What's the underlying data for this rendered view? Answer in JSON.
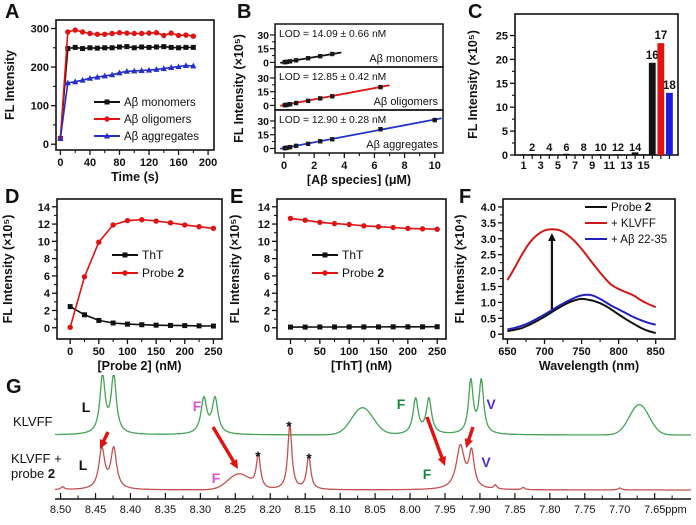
{
  "panel_letters": {
    "A": "A",
    "B": "B",
    "C": "C",
    "D": "D",
    "E": "E",
    "F": "F",
    "G": "G"
  },
  "g_labels": {
    "row1": "KLVFF",
    "row2a": "KLVFF +",
    "row2b": "probe ",
    "row2c": "2"
  },
  "colors": {
    "black": "#111111",
    "red": "#e01212",
    "blue": "#2630c8",
    "bar_blue": "#1a1ae0",
    "nmr_green": "#46a254",
    "nmr_red": "#c25050",
    "arrow_red": "#e01212",
    "magenta": "#e050dd",
    "violet": "#4d2fc8",
    "green_letter": "#158a3c"
  },
  "chart_data": [
    {
      "id": "A",
      "type": "line",
      "xlabel": "Time (s)",
      "ylabel": "FL Intensity",
      "xlim": [
        -6,
        208
      ],
      "ylim": [
        -15,
        322
      ],
      "xticks": [
        0,
        40,
        80,
        120,
        160,
        200
      ],
      "xtick_labels": [
        "0",
        "40",
        "80",
        "120",
        "160",
        "200"
      ],
      "yticks": [
        0,
        100,
        200,
        300
      ],
      "ytick_labels": [
        "0",
        "100",
        "200",
        "300"
      ],
      "series": [
        {
          "name": "Aβ monomers",
          "color": "#111111",
          "marker": "square",
          "x": [
            0,
            10,
            20,
            30,
            40,
            50,
            60,
            70,
            80,
            90,
            100,
            110,
            120,
            130,
            140,
            150,
            160,
            170,
            180
          ],
          "y": [
            15,
            248,
            251,
            248,
            250,
            249,
            250,
            250,
            252,
            253,
            250,
            252,
            251,
            252,
            253,
            251,
            250,
            251,
            251
          ]
        },
        {
          "name": "Aβ oligomers",
          "color": "#e01212",
          "marker": "circle",
          "y": [
            15,
            291,
            296,
            291,
            287,
            285,
            285,
            287,
            289,
            288,
            287,
            287,
            288,
            289,
            282,
            288,
            282,
            283,
            280
          ]
        },
        {
          "name": "Aβ aggregates",
          "color": "#2630c8",
          "marker": "triangle",
          "y": [
            15,
            159,
            162,
            166,
            171,
            174,
            177,
            180,
            185,
            189,
            190,
            191,
            192,
            194,
            196,
            199,
            201,
            204,
            203
          ]
        }
      ],
      "legend": true
    },
    {
      "id": "B",
      "type": "stacked-scatter",
      "xlabel": "[Aβ species] (μM)",
      "ylabel": "FL Intensity (×10⁵)",
      "xlim": [
        -0.6,
        10.55
      ],
      "xticks": [
        0,
        2,
        4,
        6,
        8,
        10
      ],
      "xtick_labels": [
        "0",
        "2",
        "4",
        "6",
        "8",
        "10"
      ],
      "ylim": [
        -5,
        42
      ],
      "yticks": [
        0,
        15,
        30
      ],
      "ytick_labels": [
        "0",
        "15",
        "30"
      ],
      "subplots": [
        {
          "lod": "LOD = 14.09 ± 0.66 nM",
          "label": "Aβ monomers",
          "color": "#111111",
          "points": [
            [
              0.05,
              0.3
            ],
            [
              0.1,
              0.45
            ],
            [
              0.2,
              0.6
            ],
            [
              0.4,
              1.2
            ],
            [
              0.8,
              2.3
            ],
            [
              1.6,
              4.6
            ],
            [
              2.4,
              6.8
            ],
            [
              3.2,
              9.2
            ]
          ],
          "fit": [
            [
              -0.25,
              -0.5
            ],
            [
              3.8,
              10.9
            ]
          ]
        },
        {
          "lod": "LOD = 12.85 ± 0.42 nM",
          "label": "Aβ oligomers",
          "color": "#e01212",
          "points": [
            [
              0.05,
              0.3
            ],
            [
              0.1,
              0.5
            ],
            [
              0.2,
              0.7
            ],
            [
              0.4,
              1.3
            ],
            [
              0.8,
              2.6
            ],
            [
              1.6,
              5.0
            ],
            [
              2.4,
              7.7
            ],
            [
              3.2,
              10.0
            ],
            [
              6.4,
              20.0
            ]
          ],
          "fit": [
            [
              -0.25,
              -0.4
            ],
            [
              7.0,
              22.0
            ]
          ]
        },
        {
          "lod": "LOD = 12.90 ± 0.28 nM",
          "label": "Aβ aggregates",
          "color": "#2233cc",
          "points": [
            [
              0.05,
              0.3
            ],
            [
              0.1,
              0.5
            ],
            [
              0.2,
              0.8
            ],
            [
              0.4,
              1.4
            ],
            [
              0.8,
              2.8
            ],
            [
              1.6,
              5.0
            ],
            [
              2.4,
              7.8
            ],
            [
              3.2,
              10.0
            ],
            [
              6.4,
              21.0
            ],
            [
              10,
              31.0
            ]
          ],
          "fit": [
            [
              -0.25,
              -0.4
            ],
            [
              10.45,
              33.0
            ]
          ]
        }
      ]
    },
    {
      "id": "C",
      "type": "bar",
      "ylabel": "FL Intensity (×10⁵)",
      "ylim": [
        0,
        29.5
      ],
      "yticks": [
        0,
        5,
        10,
        15,
        20,
        25
      ],
      "ytick_labels": [
        "0",
        "5",
        "10",
        "15",
        "20",
        "25"
      ],
      "categories": [
        "1",
        "2",
        "3",
        "4",
        "5",
        "6",
        "7",
        "8",
        "9",
        "10",
        "11",
        "12",
        "13",
        "14",
        "15",
        "16",
        "17",
        "18"
      ],
      "values": [
        0.15,
        0.18,
        0.12,
        0.15,
        0.12,
        0.25,
        0.12,
        0.15,
        0.12,
        0.15,
        0.12,
        0.15,
        0.12,
        0.55,
        0.15,
        19.3,
        23.4,
        13.0
      ],
      "bar_colors": [
        "#111111",
        "#111111",
        "#111111",
        "#111111",
        "#111111",
        "#111111",
        "#111111",
        "#111111",
        "#111111",
        "#111111",
        "#111111",
        "#111111",
        "#111111",
        "#111111",
        "#111111",
        "#111111",
        "#e01212",
        "#1a1ae0"
      ],
      "below_labels": [
        "1",
        "",
        "3",
        "",
        "5",
        "",
        "7",
        "",
        "9",
        "",
        "11",
        "",
        "13",
        "",
        "15",
        "",
        "",
        ""
      ],
      "above_labels": [
        "",
        "2",
        "",
        "4",
        "",
        "6",
        "",
        "8",
        "",
        "10",
        "",
        "12",
        "",
        "14",
        "",
        "",
        "",
        ""
      ],
      "top_labels": [
        "",
        "",
        "",
        "",
        "",
        "",
        "",
        "",
        "",
        "",
        "",
        "",
        "",
        "",
        "",
        "16",
        "17",
        "18"
      ]
    },
    {
      "id": "D",
      "type": "line",
      "xlabel": [
        {
          "t": "[Probe "
        },
        {
          "t": "2",
          "b": true
        },
        {
          "t": "] (nM)"
        }
      ],
      "ylabel": "FL Intensity (×10⁵)",
      "xlim": [
        -23,
        265
      ],
      "ylim": [
        -1.3,
        14.9
      ],
      "xticks": [
        0,
        50,
        100,
        150,
        200,
        250
      ],
      "xtick_labels": [
        "0",
        "50",
        "100",
        "150",
        "200",
        "250"
      ],
      "yticks": [
        0,
        2,
        4,
        6,
        8,
        10,
        12,
        14
      ],
      "ytick_labels": [
        "0",
        "2",
        "4",
        "6",
        "8",
        "10",
        "12",
        "14"
      ],
      "series": [
        {
          "name": "ThT",
          "color": "#111111",
          "marker": "square",
          "x": [
            0,
            25,
            50,
            75,
            100,
            125,
            150,
            175,
            200,
            225,
            250
          ],
          "y": [
            2.45,
            1.5,
            0.85,
            0.55,
            0.42,
            0.35,
            0.3,
            0.27,
            0.25,
            0.22,
            0.2
          ]
        },
        {
          "name": [
            {
              "t": "Probe "
            },
            {
              "t": "2",
              "b": true
            }
          ],
          "color": "#e01212",
          "marker": "circle",
          "y": [
            0.05,
            5.9,
            9.9,
            11.9,
            12.4,
            12.5,
            12.35,
            12.15,
            11.9,
            11.7,
            11.5
          ]
        }
      ],
      "legend": true
    },
    {
      "id": "E",
      "type": "line",
      "xlabel": "[ThT] (nM)",
      "ylabel": "FL Intensity (×10⁵)",
      "xlim": [
        -23,
        265
      ],
      "ylim": [
        -1.3,
        14.9
      ],
      "xticks": [
        0,
        50,
        100,
        150,
        200,
        250
      ],
      "xtick_labels": [
        "0",
        "50",
        "100",
        "150",
        "200",
        "250"
      ],
      "yticks": [
        0,
        2,
        4,
        6,
        8,
        10,
        12,
        14
      ],
      "ytick_labels": [
        "0",
        "2",
        "4",
        "6",
        "8",
        "10",
        "12",
        "14"
      ],
      "series": [
        {
          "name": "ThT",
          "color": "#111111",
          "marker": "square",
          "x": [
            0,
            25,
            50,
            75,
            100,
            125,
            150,
            175,
            200,
            225,
            250
          ],
          "y": [
            0.08,
            0.08,
            0.09,
            0.09,
            0.1,
            0.1,
            0.1,
            0.11,
            0.11,
            0.11,
            0.12
          ]
        },
        {
          "name": [
            {
              "t": "Probe "
            },
            {
              "t": "2",
              "b": true
            }
          ],
          "color": "#e01212",
          "marker": "circle",
          "y": [
            12.65,
            12.45,
            12.2,
            12.05,
            11.95,
            11.8,
            11.7,
            11.6,
            11.5,
            11.45,
            11.4
          ]
        }
      ],
      "legend": true
    },
    {
      "id": "F",
      "type": "line",
      "smooth": true,
      "xlabel": "Wavelength (nm)",
      "ylabel": "FL Intensity (×10⁴)",
      "xlim": [
        644,
        876
      ],
      "ylim": [
        -0.15,
        4.25
      ],
      "xticks": [
        650,
        700,
        750,
        800,
        850
      ],
      "xtick_labels": [
        "650",
        "700",
        "750",
        "800",
        "850"
      ],
      "yticks": [
        0,
        0.5,
        1,
        1.5,
        2,
        2.5,
        3,
        3.5,
        4
      ],
      "ytick_labels": [
        "0",
        "0.5",
        "1.0",
        "1.5",
        "2.0",
        "2.5",
        "3.0",
        "3.5",
        "4.0"
      ],
      "series": [
        {
          "name": [
            {
              "t": "Probe "
            },
            {
              "t": "2",
              "b": true
            }
          ],
          "color": "#111111",
          "x": [
            650,
            660,
            670,
            680,
            690,
            700,
            710,
            720,
            730,
            740,
            750,
            760,
            770,
            780,
            790,
            800,
            810,
            820,
            830,
            840,
            850
          ],
          "y": [
            0.1,
            0.14,
            0.2,
            0.3,
            0.42,
            0.55,
            0.7,
            0.84,
            0.97,
            1.06,
            1.11,
            1.08,
            1.02,
            0.92,
            0.78,
            0.62,
            0.47,
            0.33,
            0.2,
            0.1,
            0.04
          ]
        },
        {
          "name": "+ KLVFF",
          "color": "#cf1818",
          "y": [
            1.7,
            2.1,
            2.52,
            2.88,
            3.12,
            3.26,
            3.3,
            3.27,
            3.14,
            2.94,
            2.68,
            2.38,
            2.08,
            1.8,
            1.56,
            1.42,
            1.32,
            1.22,
            1.07,
            0.95,
            0.85
          ]
        },
        {
          "name": "+ Aβ 22-35",
          "color": "#2222bb",
          "y": [
            0.15,
            0.2,
            0.27,
            0.37,
            0.49,
            0.62,
            0.76,
            0.9,
            1.03,
            1.14,
            1.22,
            1.24,
            1.17,
            1.04,
            0.9,
            0.78,
            0.66,
            0.54,
            0.44,
            0.36,
            0.3
          ]
        }
      ],
      "legend": true,
      "arrow": {
        "x": 710,
        "y1": 0.78,
        "y2": 3.18,
        "color": "#111111"
      }
    },
    {
      "id": "G",
      "type": "nmr",
      "xlim": [
        8.508,
        7.598
      ],
      "xticks": [
        8.5,
        8.45,
        8.4,
        8.35,
        8.3,
        8.25,
        8.2,
        8.15,
        8.1,
        8.05,
        8.0,
        7.95,
        7.9,
        7.85,
        7.8,
        7.75,
        7.7,
        7.65
      ],
      "xtick_labels": [
        "8.50",
        "8.45",
        "8.40",
        "8.35",
        "8.30",
        "8.25",
        "8.20",
        "8.15",
        "8.10",
        "8.05",
        "8.00",
        "7.95",
        "7.90",
        "7.85",
        "7.80",
        "7.75",
        "7.70",
        "7.65"
      ],
      "unit_label": "ppm",
      "traces": [
        {
          "name": "KLVFF",
          "color": "#46a254",
          "baseline": 60,
          "scale": 55,
          "peaks": [
            [
              8.44,
              1.04,
              0.0045,
              "L"
            ],
            [
              8.424,
              1.04,
              0.0045,
              "L"
            ],
            [
              8.295,
              0.64,
              0.005,
              "L"
            ],
            [
              8.279,
              0.64,
              0.005,
              "L"
            ],
            [
              8.068,
              0.49,
              0.022,
              "G"
            ],
            [
              7.992,
              0.64,
              0.0045,
              "L"
            ],
            [
              7.973,
              0.64,
              0.0045,
              "L"
            ],
            [
              7.913,
              0.96,
              0.004,
              "L"
            ],
            [
              7.898,
              0.96,
              0.004,
              "L"
            ],
            [
              7.672,
              0.55,
              0.02,
              "G"
            ]
          ]
        },
        {
          "name": "KLVFF + probe 2",
          "color": "#c25050",
          "baseline": 115,
          "scale": 55,
          "peaks": [
            [
              8.497,
              0.05,
              0.003,
              "L"
            ],
            [
              8.441,
              0.73,
              0.005,
              "L"
            ],
            [
              8.424,
              0.73,
              0.005,
              "L"
            ],
            [
              8.245,
              0.28,
              0.022,
              "G"
            ],
            [
              8.217,
              0.6,
              0.0035,
              "L"
            ],
            [
              8.172,
              1.18,
              0.0035,
              "L"
            ],
            [
              8.145,
              0.6,
              0.0035,
              "L"
            ],
            [
              7.928,
              0.78,
              0.007,
              "L"
            ],
            [
              7.912,
              0.64,
              0.0045,
              "L"
            ],
            [
              7.878,
              0.07,
              0.0025,
              "L"
            ],
            [
              7.838,
              0.04,
              0.0025,
              "L"
            ],
            [
              7.7,
              0.035,
              0.003,
              "L"
            ]
          ]
        }
      ],
      "letters": [
        {
          "t": "L",
          "x": 86,
          "y": 37,
          "c": "#111111"
        },
        {
          "t": "F",
          "x": 197,
          "y": 36,
          "c": "#e050dd"
        },
        {
          "t": "F",
          "x": 401,
          "y": 34,
          "c": "#158a3c"
        },
        {
          "t": "V",
          "x": 491,
          "y": 34,
          "c": "#4d2fc8"
        },
        {
          "t": "L",
          "x": 83,
          "y": 95,
          "c": "#111111"
        },
        {
          "t": "F",
          "x": 216,
          "y": 108,
          "c": "#e050dd"
        },
        {
          "t": "F",
          "x": 427,
          "y": 104,
          "c": "#158a3c"
        },
        {
          "t": "V",
          "x": 486,
          "y": 92,
          "c": "#4d2fc8"
        },
        {
          "t": "*",
          "x": 258,
          "y": 86,
          "c": "#111111"
        },
        {
          "t": "*",
          "x": 289,
          "y": 56,
          "c": "#111111"
        },
        {
          "t": "*",
          "x": 309,
          "y": 88,
          "c": "#111111"
        }
      ],
      "arrows": [
        [
          108,
          57,
          100,
          74
        ],
        [
          213,
          52,
          238,
          94
        ],
        [
          427,
          42,
          445,
          91
        ],
        [
          473,
          52,
          466,
          73
        ]
      ]
    }
  ]
}
